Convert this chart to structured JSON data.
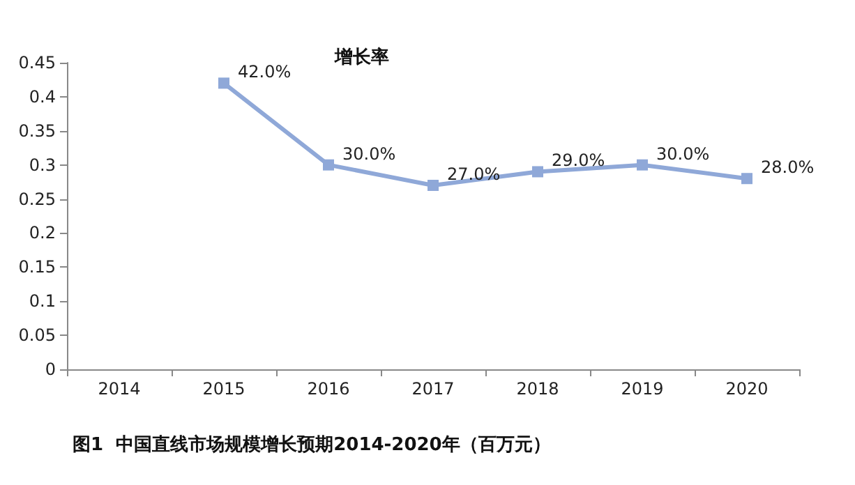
{
  "chart_data": {
    "type": "line",
    "title": "增长率",
    "annotations": [
      "图1  中国直线市场规模增长预期2014-2020年（百万元）"
    ],
    "categories": [
      "2014",
      "2015",
      "2016",
      "2017",
      "2018",
      "2019",
      "2020"
    ],
    "series": [
      {
        "color": "#8fa8d8",
        "values": [
          null,
          0.42,
          0.3,
          0.27,
          0.29,
          0.3,
          0.28
        ],
        "value_labels": [
          null,
          "42.0%",
          "30.0%",
          "27.0%",
          "29.0%",
          "30.0%",
          "28.0%"
        ]
      }
    ],
    "ylim": [
      0,
      0.45
    ],
    "yticks": [
      0,
      0.05,
      0.1,
      0.15,
      0.2,
      0.25,
      0.3,
      0.35,
      0.4,
      0.45
    ],
    "grid": false,
    "marker": "square",
    "line_style": "solid"
  }
}
